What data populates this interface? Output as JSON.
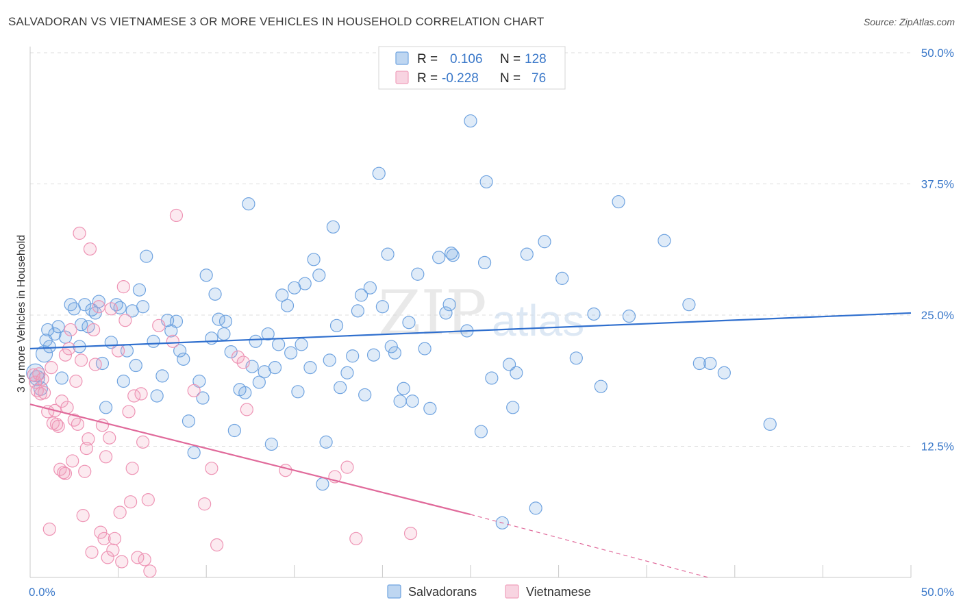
{
  "header": {
    "title": "SALVADORAN VS VIETNAMESE 3 OR MORE VEHICLES IN HOUSEHOLD CORRELATION CHART",
    "source": "Source: ZipAtlas.com"
  },
  "watermark": {
    "zip": "ZIP",
    "atlas": "atlas"
  },
  "legend_box": {
    "rows": [
      {
        "r_label": "R =",
        "r_value": "0.106",
        "n_label": "N =",
        "n_value": "128",
        "color": "#6fa3e0"
      },
      {
        "r_label": "R =",
        "r_value": "-0.228",
        "n_label": "N =",
        "n_value": "76",
        "color": "#f0a0bc"
      }
    ]
  },
  "bottom_legend": [
    {
      "label": "Salvadorans",
      "color": "#6fa3e0"
    },
    {
      "label": "Vietnamese",
      "color": "#f0a0bc"
    }
  ],
  "chart_data": {
    "type": "scatter",
    "title": "SALVADORAN VS VIETNAMESE 3 OR MORE VEHICLES IN HOUSEHOLD CORRELATION CHART",
    "ylabel": "3 or more Vehicles in Household",
    "xlabel": "",
    "xlim": [
      0,
      50
    ],
    "ylim": [
      0,
      50
    ],
    "x_tick_labels": [
      "0.0%",
      "50.0%"
    ],
    "y_ticks": [
      12.5,
      25.0,
      37.5,
      50.0
    ],
    "y_tick_labels": [
      "12.5%",
      "25.0%",
      "37.5%",
      "50.0%"
    ],
    "grid": true,
    "legend_position": "top-center",
    "series": [
      {
        "name": "Salvadorans",
        "color": "#6fa3e0",
        "r": 0.106,
        "n": 128,
        "trend": {
          "x": [
            0,
            50
          ],
          "y": [
            21.8,
            25.2
          ]
        },
        "points": [
          [
            0.3,
            19.5
          ],
          [
            0.4,
            19.0
          ],
          [
            0.6,
            18.0
          ],
          [
            0.8,
            21.3
          ],
          [
            0.9,
            22.6
          ],
          [
            1.0,
            23.6
          ],
          [
            1.1,
            22.0
          ],
          [
            1.4,
            23.2
          ],
          [
            1.6,
            23.9
          ],
          [
            1.8,
            19.0
          ],
          [
            2.0,
            22.9
          ],
          [
            2.3,
            26.0
          ],
          [
            2.5,
            25.6
          ],
          [
            2.8,
            22.0
          ],
          [
            2.9,
            24.1
          ],
          [
            3.1,
            26.0
          ],
          [
            3.3,
            23.9
          ],
          [
            3.5,
            25.5
          ],
          [
            3.7,
            25.2
          ],
          [
            3.9,
            26.3
          ],
          [
            4.1,
            20.4
          ],
          [
            4.3,
            16.2
          ],
          [
            4.6,
            22.4
          ],
          [
            4.9,
            26.0
          ],
          [
            5.1,
            25.7
          ],
          [
            5.3,
            18.7
          ],
          [
            5.5,
            21.6
          ],
          [
            5.8,
            25.4
          ],
          [
            6.0,
            20.2
          ],
          [
            6.2,
            27.4
          ],
          [
            6.4,
            25.8
          ],
          [
            6.6,
            30.6
          ],
          [
            7.0,
            22.5
          ],
          [
            7.2,
            17.3
          ],
          [
            7.5,
            19.2
          ],
          [
            7.8,
            24.5
          ],
          [
            8.0,
            23.5
          ],
          [
            8.3,
            24.4
          ],
          [
            8.5,
            21.6
          ],
          [
            8.7,
            20.8
          ],
          [
            9.0,
            14.9
          ],
          [
            9.3,
            11.9
          ],
          [
            9.6,
            18.7
          ],
          [
            9.8,
            17.1
          ],
          [
            10.0,
            28.8
          ],
          [
            10.3,
            22.8
          ],
          [
            10.5,
            27.0
          ],
          [
            10.7,
            24.6
          ],
          [
            11.0,
            23.2
          ],
          [
            11.1,
            24.4
          ],
          [
            11.4,
            21.5
          ],
          [
            11.6,
            14.0
          ],
          [
            11.9,
            17.9
          ],
          [
            12.2,
            17.6
          ],
          [
            12.4,
            35.6
          ],
          [
            12.6,
            20.1
          ],
          [
            12.8,
            22.5
          ],
          [
            13.0,
            18.6
          ],
          [
            13.3,
            19.6
          ],
          [
            13.5,
            23.2
          ],
          [
            13.7,
            12.7
          ],
          [
            13.9,
            20.0
          ],
          [
            14.1,
            22.2
          ],
          [
            14.3,
            26.9
          ],
          [
            14.6,
            25.9
          ],
          [
            14.8,
            21.4
          ],
          [
            15.0,
            27.6
          ],
          [
            15.2,
            17.7
          ],
          [
            15.4,
            22.2
          ],
          [
            15.6,
            28.0
          ],
          [
            15.9,
            20.0
          ],
          [
            16.1,
            30.3
          ],
          [
            16.4,
            28.8
          ],
          [
            16.6,
            8.9
          ],
          [
            16.8,
            12.9
          ],
          [
            17.0,
            20.7
          ],
          [
            17.2,
            33.4
          ],
          [
            17.4,
            24.0
          ],
          [
            17.6,
            18.1
          ],
          [
            18.0,
            19.5
          ],
          [
            18.3,
            21.1
          ],
          [
            18.6,
            25.4
          ],
          [
            18.8,
            26.9
          ],
          [
            19.0,
            17.4
          ],
          [
            19.3,
            27.6
          ],
          [
            19.5,
            21.2
          ],
          [
            19.8,
            38.5
          ],
          [
            20.0,
            25.8
          ],
          [
            20.3,
            30.8
          ],
          [
            20.5,
            22.0
          ],
          [
            20.7,
            21.4
          ],
          [
            21.0,
            16.8
          ],
          [
            21.2,
            18.0
          ],
          [
            21.5,
            24.3
          ],
          [
            21.7,
            16.8
          ],
          [
            22.0,
            28.9
          ],
          [
            22.4,
            21.8
          ],
          [
            22.7,
            16.1
          ],
          [
            23.2,
            30.5
          ],
          [
            23.6,
            25.2
          ],
          [
            23.8,
            26.0
          ],
          [
            23.9,
            30.9
          ],
          [
            24.0,
            30.7
          ],
          [
            24.8,
            23.5
          ],
          [
            25.0,
            43.5
          ],
          [
            25.6,
            13.9
          ],
          [
            25.8,
            30.0
          ],
          [
            25.9,
            37.7
          ],
          [
            26.2,
            19.0
          ],
          [
            26.8,
            5.2
          ],
          [
            27.2,
            20.3
          ],
          [
            27.4,
            16.2
          ],
          [
            27.6,
            19.5
          ],
          [
            28.2,
            30.8
          ],
          [
            28.7,
            6.6
          ],
          [
            29.2,
            32.0
          ],
          [
            30.2,
            28.5
          ],
          [
            31.0,
            20.9
          ],
          [
            32.0,
            25.1
          ],
          [
            32.4,
            18.2
          ],
          [
            33.4,
            35.8
          ],
          [
            34.0,
            24.9
          ],
          [
            36.0,
            32.1
          ],
          [
            37.4,
            26.0
          ],
          [
            38.0,
            20.4
          ],
          [
            38.6,
            20.4
          ],
          [
            39.4,
            19.5
          ],
          [
            42.0,
            14.6
          ]
        ]
      },
      {
        "name": "Vietnamese",
        "color": "#f0a0bc",
        "r": -0.228,
        "n": 76,
        "trend": {
          "x": [
            0,
            25
          ],
          "y": [
            16.5,
            6.0
          ]
        },
        "trend_dashed": {
          "x": [
            25,
            38.5
          ],
          "y": [
            6.0,
            0.0
          ]
        },
        "points": [
          [
            0.2,
            19.3
          ],
          [
            0.3,
            18.6
          ],
          [
            0.4,
            17.8
          ],
          [
            0.5,
            19.4
          ],
          [
            0.6,
            17.5
          ],
          [
            0.7,
            18.9
          ],
          [
            0.8,
            17.6
          ],
          [
            1.0,
            15.8
          ],
          [
            1.1,
            4.6
          ],
          [
            1.2,
            20.0
          ],
          [
            1.3,
            14.7
          ],
          [
            1.4,
            15.9
          ],
          [
            1.5,
            14.6
          ],
          [
            1.6,
            14.4
          ],
          [
            1.7,
            10.3
          ],
          [
            1.8,
            16.8
          ],
          [
            1.9,
            10.0
          ],
          [
            2.0,
            9.9
          ],
          [
            2.0,
            21.2
          ],
          [
            2.1,
            16.2
          ],
          [
            2.2,
            21.8
          ],
          [
            2.3,
            23.6
          ],
          [
            2.4,
            11.1
          ],
          [
            2.5,
            15.0
          ],
          [
            2.6,
            18.7
          ],
          [
            2.7,
            14.6
          ],
          [
            2.8,
            32.8
          ],
          [
            2.9,
            20.7
          ],
          [
            3.0,
            5.9
          ],
          [
            3.1,
            10.1
          ],
          [
            3.2,
            12.3
          ],
          [
            3.3,
            13.2
          ],
          [
            3.4,
            31.3
          ],
          [
            3.5,
            2.4
          ],
          [
            3.6,
            23.6
          ],
          [
            3.7,
            20.3
          ],
          [
            3.9,
            25.8
          ],
          [
            4.0,
            4.3
          ],
          [
            4.1,
            14.5
          ],
          [
            4.2,
            3.7
          ],
          [
            4.3,
            11.5
          ],
          [
            4.4,
            1.9
          ],
          [
            4.5,
            13.3
          ],
          [
            4.6,
            25.6
          ],
          [
            4.7,
            2.6
          ],
          [
            4.8,
            3.7
          ],
          [
            5.0,
            21.6
          ],
          [
            5.1,
            6.2
          ],
          [
            5.2,
            1.5
          ],
          [
            5.3,
            27.7
          ],
          [
            5.4,
            24.5
          ],
          [
            5.6,
            15.8
          ],
          [
            5.7,
            7.2
          ],
          [
            5.8,
            10.4
          ],
          [
            5.9,
            17.3
          ],
          [
            6.1,
            1.9
          ],
          [
            6.3,
            17.5
          ],
          [
            6.4,
            12.9
          ],
          [
            6.5,
            1.7
          ],
          [
            6.7,
            7.4
          ],
          [
            6.8,
            0.6
          ],
          [
            7.3,
            24.0
          ],
          [
            8.1,
            22.5
          ],
          [
            8.3,
            34.5
          ],
          [
            9.3,
            17.8
          ],
          [
            9.9,
            7.0
          ],
          [
            10.3,
            10.4
          ],
          [
            10.6,
            3.1
          ],
          [
            11.8,
            21.0
          ],
          [
            12.1,
            20.5
          ],
          [
            12.3,
            16.0
          ],
          [
            14.5,
            10.2
          ],
          [
            17.3,
            9.6
          ],
          [
            18.0,
            10.5
          ],
          [
            18.5,
            3.7
          ],
          [
            21.6,
            4.2
          ]
        ]
      }
    ]
  }
}
